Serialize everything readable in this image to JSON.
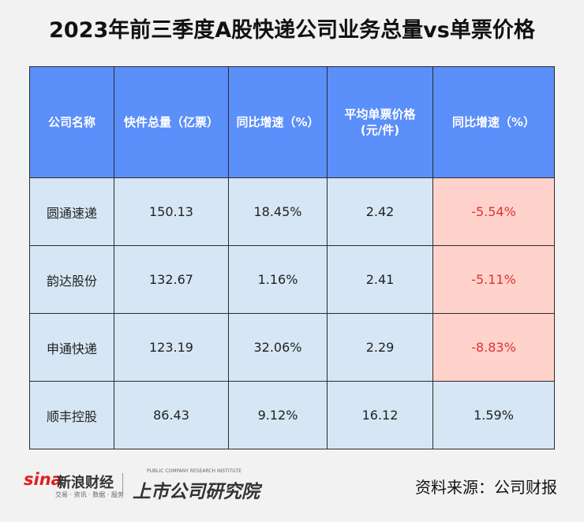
{
  "title": "2023年前三季度A股快递公司业务总量vs单票价格",
  "table": {
    "headers": [
      "公司名称",
      "快件总量（亿票）",
      "同比增速（%）",
      "平均单票价格\n(元/件)",
      "同比增速（%）"
    ],
    "rows": [
      [
        "圆通速递",
        "150.13",
        "18.45%",
        "2.42",
        "-5.54%"
      ],
      [
        "韵达股份",
        "132.67",
        "1.16%",
        "2.41",
        "-5.11%"
      ],
      [
        "申通快递",
        "123.19",
        "32.06%",
        "2.29",
        "-8.83%"
      ],
      [
        "顺丰控股",
        "86.43",
        "9.12%",
        "16.12",
        "1.59%"
      ]
    ]
  },
  "colors": {
    "header_bg": "#5b8ff9",
    "cell_bg": "#d6e6f4",
    "negative_bg": "#ffd3cc",
    "negative_text": "#e03030"
  },
  "footer": {
    "sina_logo": "sina",
    "sina_name": "新浪财经",
    "sina_sub": "交易 · 资讯 · 数据 · 服务",
    "institute_sub": "PUBLIC COMPANY RESEARCH INSTITUTE",
    "institute_name": "上市公司研究院",
    "source": "资料来源：公司财报"
  }
}
